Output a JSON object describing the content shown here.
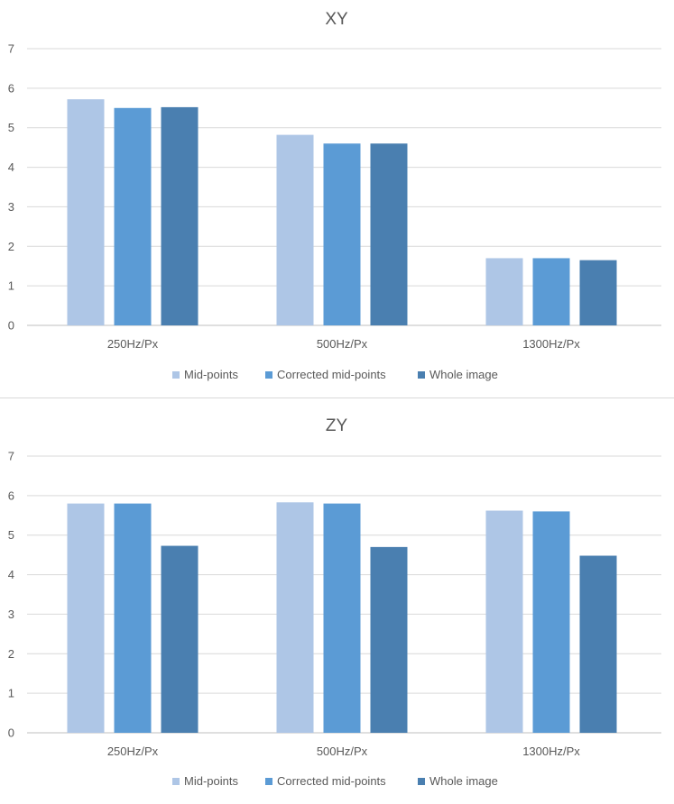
{
  "chart_data": [
    {
      "type": "bar",
      "title": "XY",
      "xlabel": "",
      "ylabel": "",
      "categories": [
        "250Hz/Px",
        "500Hz/Px",
        "1300Hz/Px"
      ],
      "ylim": [
        0,
        7
      ],
      "yticks": [
        "0",
        "1",
        "2",
        "3",
        "4",
        "5",
        "6",
        "7"
      ],
      "grid": true,
      "legend_position": "bottom",
      "series": [
        {
          "name": "Mid-points",
          "values": [
            5.72,
            4.82,
            1.7
          ],
          "color": "#aec6e6"
        },
        {
          "name": "Corrected mid-points",
          "values": [
            5.5,
            4.6,
            1.7
          ],
          "color": "#5b9bd5"
        },
        {
          "name": "Whole image",
          "values": [
            5.52,
            4.6,
            1.65
          ],
          "color": "#4a7fb0"
        }
      ]
    },
    {
      "type": "bar",
      "title": "ZY",
      "xlabel": "",
      "ylabel": "",
      "categories": [
        "250Hz/Px",
        "500Hz/Px",
        "1300Hz/Px"
      ],
      "ylim": [
        0,
        7
      ],
      "yticks": [
        "0",
        "1",
        "2",
        "3",
        "4",
        "5",
        "6",
        "7"
      ],
      "grid": true,
      "legend_position": "bottom",
      "series": [
        {
          "name": "Mid-points",
          "values": [
            5.8,
            5.83,
            5.62
          ],
          "color": "#aec6e6"
        },
        {
          "name": "Corrected mid-points",
          "values": [
            5.8,
            5.8,
            5.6
          ],
          "color": "#5b9bd5"
        },
        {
          "name": "Whole image",
          "values": [
            4.73,
            4.7,
            4.48
          ],
          "color": "#4a7fb0"
        }
      ]
    }
  ]
}
